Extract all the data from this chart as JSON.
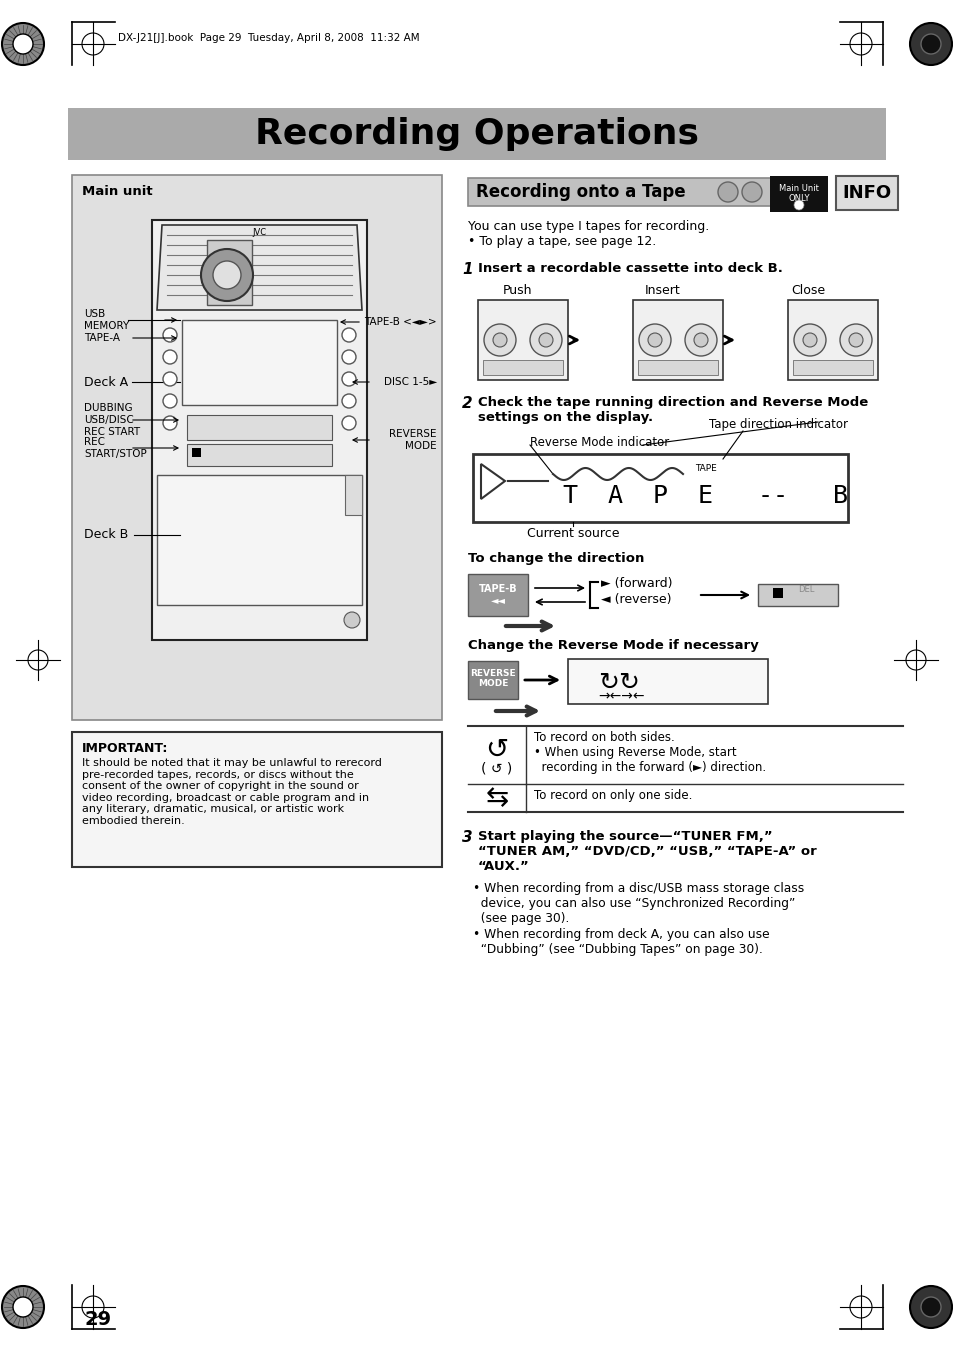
{
  "page_bg": "#ffffff",
  "header_bg": "#aaaaaa",
  "header_text": "Recording Operations",
  "header_text_color": "#000000",
  "header_fontsize": 26,
  "top_bar_text": "DX-J21[J].book  Page 29  Tuesday, April 8, 2008  11:32 AM",
  "section_title": "Recording onto a Tape",
  "section_title_bg": "#c0c0c0",
  "intro_line1": "You can use type I tapes for recording.",
  "intro_line2": "• To play a tape, see page 12.",
  "step1_text": "Insert a recordable cassette into deck B.",
  "step1_sub_labels": [
    "Push",
    "Insert",
    "Close"
  ],
  "step2_text": "Check the tape running direction and Reverse Mode\nsettings on the display.",
  "step2_ann1": "Tape direction indicator",
  "step2_ann2": "Reverse Mode indicator",
  "step2_ann3": "Current source",
  "dir_title": "To change the direction",
  "fwd_label": "(forward)",
  "rev_label": "(reverse)",
  "rev_mode_title": "Change the Reverse Mode if necessary",
  "table_row1_text": "To record on both sides.\n• When using Reverse Mode, start\n  recording in the forward (►) direction.",
  "table_row2_text": "To record on only one side.",
  "step3_text": "Start playing the source—“TUNER FM,”\n“TUNER AM,” “DVD/CD,” “USB,” “TAPE-A” or\n“AUX.”",
  "step3_b1": "• When recording from a disc/USB mass storage class\n  device, you can also use “Synchronized Recording”\n  (see page 30).",
  "step3_b2": "• When recording from deck A, you can also use\n  “Dubbing” (see “Dubbing Tapes” on page 30).",
  "imp_title": "IMPORTANT:",
  "imp_text": "It should be noted that it may be unlawful to rerecord\npre-recorded tapes, records, or discs without the\nconsent of the owner of copyright in the sound or\nvideo recording, broadcast or cable program and in\nany literary, dramatic, musical, or artistic work\nembodied therein.",
  "page_number": "29",
  "panel_bg": "#e0e0e0",
  "panel_border": "#888888",
  "unit_bg": "#f8f8f8",
  "unit_border": "#333333"
}
